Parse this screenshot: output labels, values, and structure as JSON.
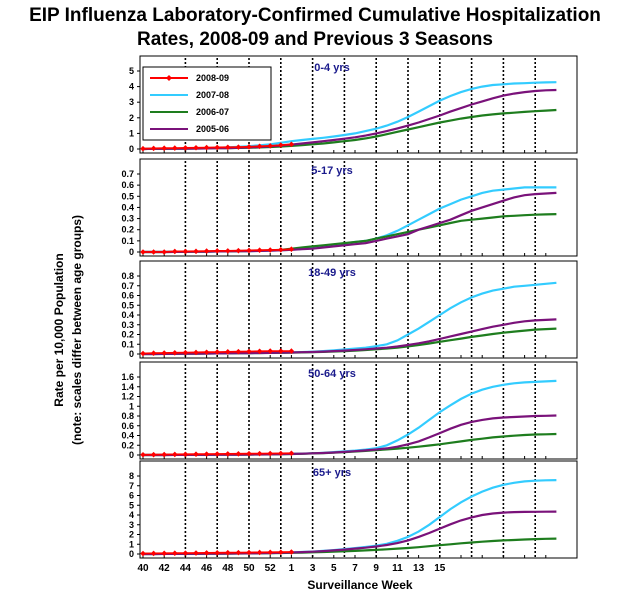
{
  "chart_data": {
    "type": "line",
    "title": [
      "EIP Influenza Laboratory-Confirmed Cumulative Hospitalization",
      "Rates, 2008-09 and Previous 3 Seasons"
    ],
    "ylabel": [
      "Rate per 10,000 Population",
      "(note: scales differ between age groups)"
    ],
    "xlabel": "Surveillance Week",
    "x_ticks": [
      "40",
      "42",
      "44",
      "46",
      "48",
      "50",
      "52",
      "1",
      "3",
      "5",
      "7",
      "9",
      "11",
      "13",
      "15"
    ],
    "legend": {
      "placement": "top-left",
      "entries": [
        {
          "name": "2008-09",
          "color": "#ff0000",
          "marker": "diamond"
        },
        {
          "name": "2007-08",
          "color": "#33ccff"
        },
        {
          "name": "2006-07",
          "color": "#1e7d1e"
        },
        {
          "name": "2005-06",
          "color": "#7a127a"
        }
      ]
    },
    "panels": [
      {
        "label": "0-4 yrs",
        "ylim": [
          0,
          5
        ],
        "yticks": [
          0,
          1,
          2,
          3,
          4,
          5
        ],
        "series": [
          {
            "name": "2008-09",
            "values": [
              0.02,
              0.04,
              0.05,
              0.06,
              0.07,
              0.08,
              0.09,
              0.1,
              0.11,
              0.12,
              0.14,
              0.17,
              0.2,
              0.25,
              0.3
            ]
          },
          {
            "name": "2007-08",
            "values": [
              0,
              0.01,
              0.02,
              0.02,
              0.03,
              0.04,
              0.06,
              0.08,
              0.1,
              0.14,
              0.18,
              0.24,
              0.3,
              0.4,
              0.5,
              0.58,
              0.65,
              0.72,
              0.8,
              0.9,
              1.0,
              1.15,
              1.3,
              1.5,
              1.75,
              2.05,
              2.4,
              2.75,
              3.1,
              3.4,
              3.65,
              3.85,
              4.0,
              4.1,
              4.15,
              4.2,
              4.22,
              4.25,
              4.27,
              4.28
            ]
          },
          {
            "name": "2006-07",
            "values": [
              0,
              0.01,
              0.01,
              0.02,
              0.02,
              0.03,
              0.04,
              0.05,
              0.06,
              0.07,
              0.08,
              0.1,
              0.13,
              0.16,
              0.2,
              0.25,
              0.3,
              0.35,
              0.42,
              0.5,
              0.58,
              0.68,
              0.8,
              0.95,
              1.1,
              1.25,
              1.4,
              1.55,
              1.7,
              1.82,
              1.95,
              2.05,
              2.15,
              2.22,
              2.28,
              2.33,
              2.38,
              2.42,
              2.46,
              2.5
            ]
          },
          {
            "name": "2005-06",
            "values": [
              0,
              0.01,
              0.01,
              0.02,
              0.02,
              0.03,
              0.04,
              0.05,
              0.06,
              0.08,
              0.1,
              0.13,
              0.17,
              0.22,
              0.28,
              0.35,
              0.42,
              0.5,
              0.58,
              0.66,
              0.75,
              0.86,
              1.0,
              1.15,
              1.32,
              1.5,
              1.7,
              1.92,
              2.15,
              2.4,
              2.62,
              2.85,
              3.05,
              3.25,
              3.42,
              3.55,
              3.65,
              3.72,
              3.76,
              3.78
            ]
          }
        ]
      },
      {
        "label": "5-17 yrs",
        "ylim": [
          0,
          0.7
        ],
        "yticks": [
          0,
          0.1,
          0.2,
          0.3,
          0.4,
          0.5,
          0.6,
          0.7
        ],
        "series": [
          {
            "name": "2008-09",
            "values": [
              0.0,
              0.0,
              0.0,
              0.005,
              0.005,
              0.006,
              0.008,
              0.01,
              0.01,
              0.012,
              0.014,
              0.016,
              0.018,
              0.02,
              0.025
            ]
          },
          {
            "name": "2007-08",
            "values": [
              0,
              0,
              0,
              0.001,
              0.002,
              0.003,
              0.004,
              0.005,
              0.006,
              0.007,
              0.008,
              0.01,
              0.012,
              0.015,
              0.02,
              0.028,
              0.035,
              0.045,
              0.06,
              0.075,
              0.09,
              0.1,
              0.12,
              0.15,
              0.19,
              0.24,
              0.29,
              0.34,
              0.39,
              0.43,
              0.47,
              0.5,
              0.53,
              0.55,
              0.56,
              0.57,
              0.58,
              0.58,
              0.58,
              0.58
            ]
          },
          {
            "name": "2006-07",
            "values": [
              0,
              0,
              0,
              0.001,
              0.002,
              0.003,
              0.004,
              0.005,
              0.006,
              0.007,
              0.009,
              0.012,
              0.015,
              0.02,
              0.03,
              0.04,
              0.05,
              0.06,
              0.07,
              0.08,
              0.09,
              0.1,
              0.12,
              0.14,
              0.16,
              0.18,
              0.2,
              0.22,
              0.24,
              0.26,
              0.28,
              0.29,
              0.3,
              0.31,
              0.32,
              0.325,
              0.33,
              0.335,
              0.337,
              0.34
            ]
          },
          {
            "name": "2005-06",
            "values": [
              0,
              0,
              0,
              0.001,
              0.002,
              0.003,
              0.004,
              0.005,
              0.006,
              0.007,
              0.008,
              0.01,
              0.012,
              0.015,
              0.02,
              0.025,
              0.03,
              0.04,
              0.05,
              0.06,
              0.07,
              0.08,
              0.1,
              0.12,
              0.14,
              0.16,
              0.2,
              0.23,
              0.26,
              0.29,
              0.33,
              0.37,
              0.4,
              0.43,
              0.46,
              0.49,
              0.51,
              0.52,
              0.525,
              0.53
            ]
          }
        ]
      },
      {
        "label": "18-49 yrs",
        "ylim": [
          0,
          0.8
        ],
        "yticks": [
          0,
          0.1,
          0.2,
          0.3,
          0.4,
          0.5,
          0.6,
          0.7,
          0.8
        ],
        "series": [
          {
            "name": "2008-09",
            "values": [
              0.005,
              0.008,
              0.01,
              0.012,
              0.014,
              0.016,
              0.018,
              0.02,
              0.022,
              0.024,
              0.026,
              0.028,
              0.03,
              0.03,
              0.03
            ]
          },
          {
            "name": "2007-08",
            "values": [
              0,
              0,
              0.001,
              0.002,
              0.003,
              0.004,
              0.005,
              0.006,
              0.007,
              0.008,
              0.009,
              0.01,
              0.012,
              0.014,
              0.016,
              0.02,
              0.024,
              0.03,
              0.038,
              0.046,
              0.055,
              0.065,
              0.08,
              0.1,
              0.14,
              0.2,
              0.26,
              0.33,
              0.4,
              0.47,
              0.53,
              0.58,
              0.62,
              0.65,
              0.67,
              0.69,
              0.7,
              0.71,
              0.72,
              0.73
            ]
          },
          {
            "name": "2006-07",
            "values": [
              0,
              0,
              0.001,
              0.002,
              0.003,
              0.004,
              0.005,
              0.006,
              0.007,
              0.008,
              0.009,
              0.01,
              0.011,
              0.012,
              0.014,
              0.016,
              0.019,
              0.022,
              0.026,
              0.03,
              0.035,
              0.041,
              0.048,
              0.056,
              0.066,
              0.078,
              0.092,
              0.108,
              0.125,
              0.142,
              0.158,
              0.175,
              0.19,
              0.205,
              0.218,
              0.23,
              0.24,
              0.25,
              0.255,
              0.26
            ]
          },
          {
            "name": "2005-06",
            "values": [
              0,
              0,
              0.001,
              0.002,
              0.003,
              0.004,
              0.005,
              0.006,
              0.007,
              0.008,
              0.009,
              0.01,
              0.011,
              0.013,
              0.015,
              0.018,
              0.021,
              0.025,
              0.03,
              0.035,
              0.041,
              0.048,
              0.056,
              0.065,
              0.077,
              0.092,
              0.11,
              0.13,
              0.155,
              0.18,
              0.205,
              0.23,
              0.255,
              0.28,
              0.3,
              0.32,
              0.335,
              0.345,
              0.35,
              0.355
            ]
          }
        ]
      },
      {
        "label": "50-64 yrs",
        "ylim": [
          0,
          1.6
        ],
        "yticks": [
          0,
          0.2,
          0.4,
          0.6,
          0.8,
          1,
          1.2,
          1.4,
          1.6
        ],
        "series": [
          {
            "name": "2008-09",
            "values": [
              0.005,
              0.007,
              0.01,
              0.012,
              0.014,
              0.016,
              0.018,
              0.02,
              0.022,
              0.024,
              0.026,
              0.028,
              0.03,
              0.032,
              0.035
            ]
          },
          {
            "name": "2007-08",
            "values": [
              0,
              0,
              0.001,
              0.002,
              0.003,
              0.004,
              0.005,
              0.006,
              0.007,
              0.008,
              0.01,
              0.012,
              0.015,
              0.018,
              0.022,
              0.028,
              0.035,
              0.045,
              0.06,
              0.075,
              0.09,
              0.11,
              0.14,
              0.2,
              0.3,
              0.42,
              0.56,
              0.72,
              0.88,
              1.02,
              1.15,
              1.26,
              1.34,
              1.4,
              1.44,
              1.47,
              1.49,
              1.5,
              1.51,
              1.52
            ]
          },
          {
            "name": "2006-07",
            "values": [
              0,
              0,
              0.001,
              0.002,
              0.003,
              0.004,
              0.005,
              0.006,
              0.007,
              0.008,
              0.009,
              0.011,
              0.013,
              0.016,
              0.02,
              0.025,
              0.032,
              0.04,
              0.05,
              0.06,
              0.072,
              0.085,
              0.1,
              0.115,
              0.132,
              0.15,
              0.17,
              0.195,
              0.22,
              0.25,
              0.28,
              0.31,
              0.335,
              0.36,
              0.38,
              0.395,
              0.41,
              0.42,
              0.425,
              0.43
            ]
          },
          {
            "name": "2005-06",
            "values": [
              0,
              0,
              0.001,
              0.002,
              0.003,
              0.004,
              0.005,
              0.006,
              0.007,
              0.008,
              0.01,
              0.012,
              0.015,
              0.018,
              0.022,
              0.027,
              0.034,
              0.042,
              0.052,
              0.064,
              0.078,
              0.094,
              0.112,
              0.135,
              0.17,
              0.22,
              0.28,
              0.36,
              0.45,
              0.54,
              0.62,
              0.68,
              0.72,
              0.75,
              0.77,
              0.78,
              0.79,
              0.8,
              0.805,
              0.81
            ]
          }
        ]
      },
      {
        "label": "65+ yrs",
        "ylim": [
          0,
          8
        ],
        "yticks": [
          0,
          1,
          2,
          3,
          4,
          5,
          6,
          7,
          8
        ],
        "series": [
          {
            "name": "2008-09",
            "values": [
              0.05,
              0.06,
              0.07,
              0.08,
              0.09,
              0.1,
              0.11,
              0.12,
              0.13,
              0.14,
              0.15,
              0.16,
              0.17,
              0.18,
              0.2
            ]
          },
          {
            "name": "2007-08",
            "values": [
              0,
              0.005,
              0.01,
              0.015,
              0.02,
              0.025,
              0.03,
              0.04,
              0.05,
              0.06,
              0.07,
              0.08,
              0.1,
              0.12,
              0.15,
              0.2,
              0.25,
              0.32,
              0.4,
              0.5,
              0.6,
              0.72,
              0.85,
              1.05,
              1.35,
              1.75,
              2.3,
              3.0,
              3.8,
              4.6,
              5.3,
              5.9,
              6.4,
              6.8,
              7.1,
              7.3,
              7.45,
              7.52,
              7.56,
              7.58
            ]
          },
          {
            "name": "2006-07",
            "values": [
              0,
              0.005,
              0.01,
              0.015,
              0.02,
              0.025,
              0.03,
              0.035,
              0.04,
              0.05,
              0.06,
              0.07,
              0.08,
              0.1,
              0.12,
              0.14,
              0.17,
              0.2,
              0.24,
              0.28,
              0.32,
              0.37,
              0.42,
              0.48,
              0.55,
              0.62,
              0.7,
              0.8,
              0.9,
              1.0,
              1.1,
              1.18,
              1.26,
              1.33,
              1.39,
              1.44,
              1.49,
              1.53,
              1.56,
              1.58
            ]
          },
          {
            "name": "2005-06",
            "values": [
              0,
              0.005,
              0.01,
              0.015,
              0.02,
              0.025,
              0.03,
              0.04,
              0.05,
              0.06,
              0.07,
              0.08,
              0.1,
              0.12,
              0.15,
              0.19,
              0.24,
              0.3,
              0.37,
              0.45,
              0.55,
              0.65,
              0.77,
              0.92,
              1.12,
              1.4,
              1.75,
              2.15,
              2.6,
              3.05,
              3.45,
              3.75,
              4.0,
              4.15,
              4.25,
              4.3,
              4.32,
              4.33,
              4.34,
              4.35
            ]
          }
        ]
      }
    ]
  }
}
